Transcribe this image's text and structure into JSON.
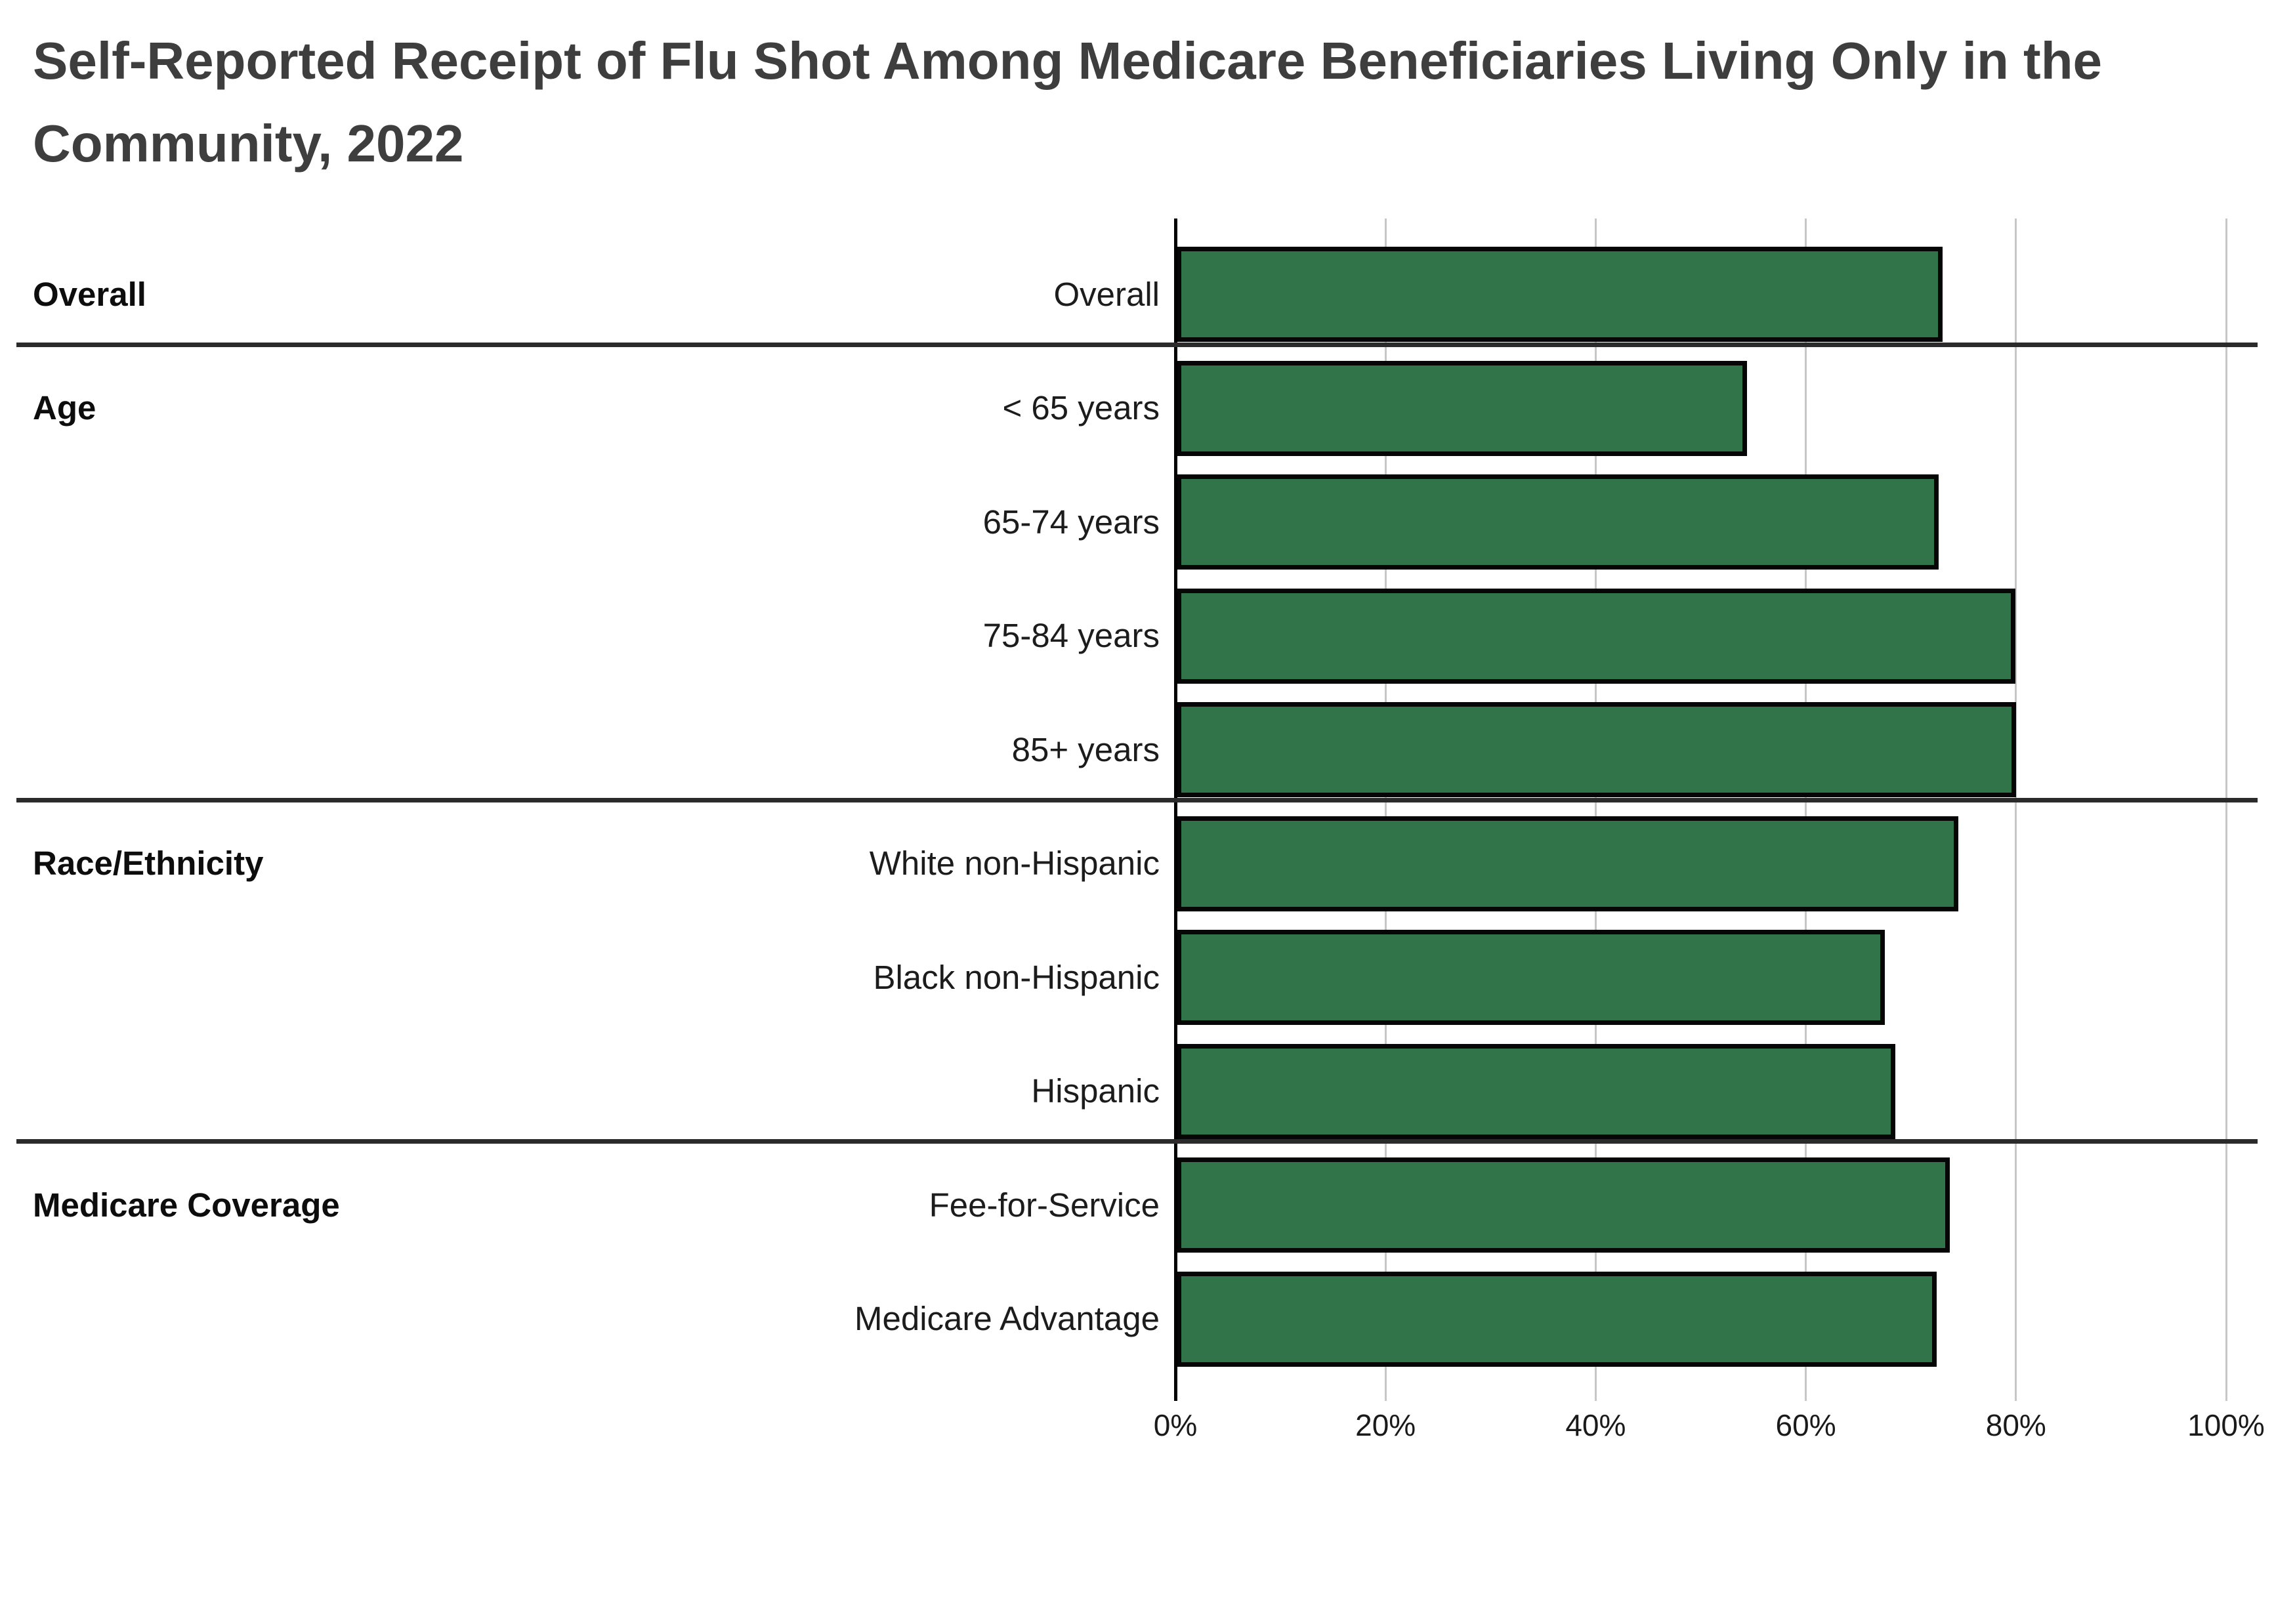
{
  "title": {
    "line1": "Self-Reported Receipt of Flu Shot Among Medicare Beneficiaries Living Only in the",
    "line2": "Community, 2022"
  },
  "chart_data": {
    "type": "bar",
    "orientation": "horizontal",
    "title": "Self-Reported Receipt of Flu Shot Among Medicare Beneficiaries Living Only in the Community, 2022",
    "xlabel": "",
    "ylabel": "",
    "unit": "%",
    "xlim": [
      0,
      100
    ],
    "x_ticks": [
      "0%",
      "20%",
      "40%",
      "60%",
      "80%",
      "100%"
    ],
    "x_tick_values": [
      0,
      20,
      40,
      60,
      80,
      100
    ],
    "grid": "vertical",
    "legend": "none",
    "bar_color": "#317449",
    "bar_border_color": "#060606",
    "groups": [
      {
        "label": "Overall",
        "rows": [
          {
            "label": "Overall",
            "value": 72.9
          }
        ]
      },
      {
        "label": "Age",
        "rows": [
          {
            "label": "< 65 years",
            "value": 54.3
          },
          {
            "label": "65-74 years",
            "value": 72.5
          },
          {
            "label": "75-84 years",
            "value": 79.8
          },
          {
            "label": "85+ years",
            "value": 79.9
          }
        ]
      },
      {
        "label": "Race/Ethnicity",
        "rows": [
          {
            "label": "White non-Hispanic",
            "value": 74.4
          },
          {
            "label": "Black non-Hispanic",
            "value": 67.4
          },
          {
            "label": "Hispanic",
            "value": 68.4
          }
        ]
      },
      {
        "label": "Medicare Coverage",
        "rows": [
          {
            "label": "Fee-for-Service",
            "value": 73.6
          },
          {
            "label": "Medicare Advantage",
            "value": 72.3
          }
        ]
      }
    ]
  }
}
